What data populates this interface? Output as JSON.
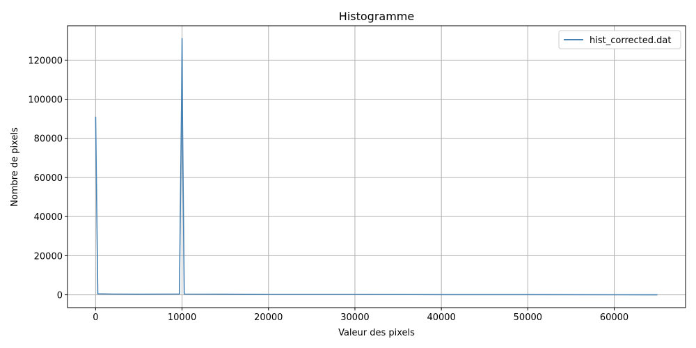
{
  "chart_data": {
    "type": "line",
    "title": "Histogramme",
    "xlabel": "Valeur des pixels",
    "ylabel": "Nombre de pixels",
    "xlim": [
      -3250,
      68250
    ],
    "ylim": [
      -6550,
      137550
    ],
    "x_ticks": [
      0,
      10000,
      20000,
      30000,
      40000,
      50000,
      60000
    ],
    "x_tick_labels": [
      "0",
      "10000",
      "20000",
      "30000",
      "40000",
      "50000",
      "60000"
    ],
    "y_ticks": [
      0,
      20000,
      40000,
      60000,
      80000,
      100000,
      120000
    ],
    "y_tick_labels": [
      "0",
      "20000",
      "40000",
      "60000",
      "80000",
      "100000",
      "120000"
    ],
    "grid": true,
    "legend_position": "top-right",
    "series": [
      {
        "name": "hist_corrected.dat",
        "color": "#4682b4",
        "x": [
          0,
          250,
          2000,
          5000,
          9700,
          9950,
          10000,
          10050,
          10250,
          15000,
          20000,
          30000,
          40000,
          50000,
          60000,
          65000
        ],
        "y": [
          91000,
          500,
          400,
          300,
          400,
          100000,
          131000,
          90000,
          400,
          300,
          200,
          200,
          100,
          100,
          50,
          0
        ]
      }
    ]
  }
}
